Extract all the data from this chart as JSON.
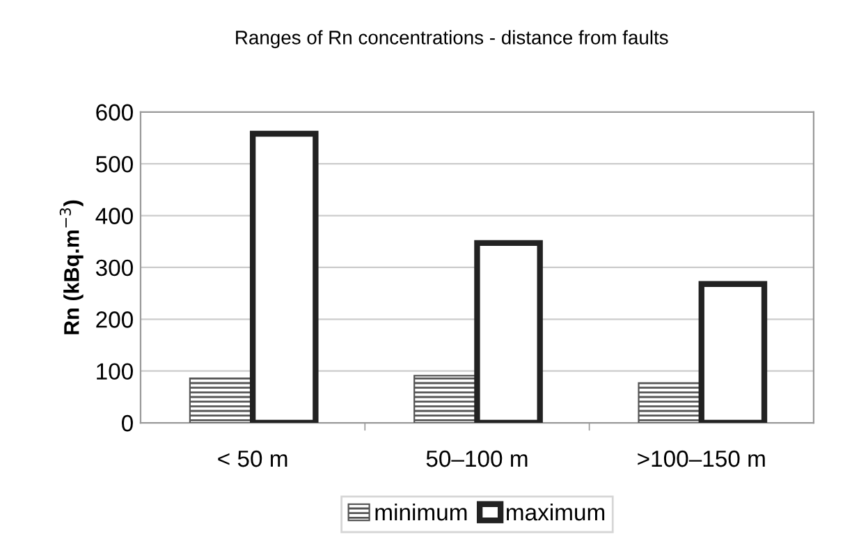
{
  "chart_data": {
    "type": "bar",
    "title": "Ranges of Rn concentrations - distance from faults",
    "ylabel": "Rn (kBq.m$^{−3}$)",
    "categories": [
      "< 50 m",
      "50–100 m",
      ">100–150 m"
    ],
    "series": [
      {
        "name": "minimum",
        "color": "#555555",
        "values": [
          86,
          91,
          77
        ]
      },
      {
        "name": "maximum",
        "color": "#222222",
        "values": [
          558,
          347,
          268
        ]
      }
    ],
    "ylim": [
      0,
      600
    ],
    "yticks": [
      0,
      100,
      200,
      300,
      400,
      500,
      600
    ],
    "grid": "y",
    "legend": "bottom"
  }
}
